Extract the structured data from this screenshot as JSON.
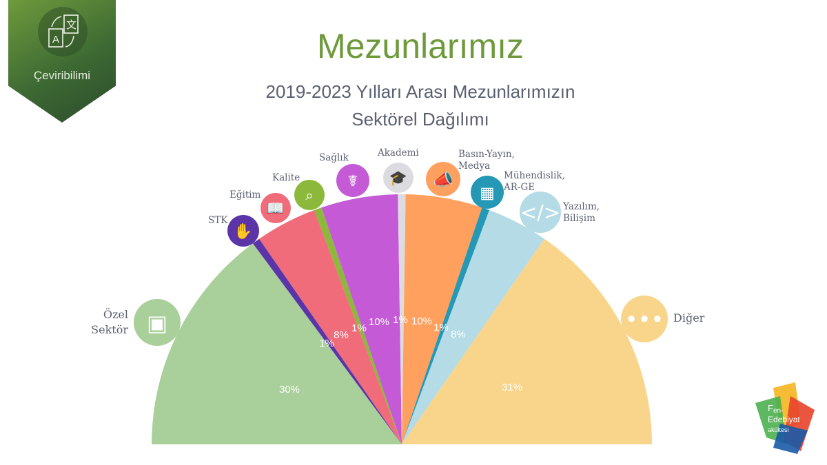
{
  "badge": {
    "label": "Çeviribilimi",
    "icon": "translate-icon"
  },
  "header": {
    "title": "Mezunlarımız",
    "subtitle_lines": [
      "2019-2023 Yılları Arası Mezunlarımızın",
      "Sektörel Dağılımı"
    ]
  },
  "logo": {
    "text": "Fen-Edebiyat Fakültesi",
    "colors": [
      "#f6b82a",
      "#4caf50",
      "#e8432b",
      "#1a5aa6"
    ]
  },
  "chart_data": {
    "type": "pie",
    "variant": "semicircle",
    "categories": [
      {
        "label": "Özel Sektör",
        "value": 30,
        "pct": "30%",
        "color": "#a9d09a",
        "icon": "briefcase-icon"
      },
      {
        "label": "STK",
        "value": 1,
        "pct": "1%",
        "color": "#5b35a8",
        "icon": "hand-globe-icon"
      },
      {
        "label": "Eğitim",
        "value": 8,
        "pct": "8%",
        "color": "#f06c7a",
        "icon": "book-icon"
      },
      {
        "label": "Kalite",
        "value": 1,
        "pct": "1%",
        "color": "#8cb83c",
        "icon": "inspector-icon"
      },
      {
        "label": "Sağlık",
        "value": 10,
        "pct": "10%",
        "color": "#c45ad6",
        "icon": "caduceus-icon"
      },
      {
        "label": "Akademi",
        "value": 1,
        "pct": "1%",
        "color": "#dcdce0",
        "icon": "graduation-cap-icon"
      },
      {
        "label": "Basın-Yayın, Medya",
        "value": 10,
        "pct": "10%",
        "color": "#ffa05e",
        "icon": "megaphone-icon"
      },
      {
        "label": "Mühendislik, AR-GE",
        "value": 1,
        "pct": "1%",
        "color": "#2598b6",
        "icon": "circuit-icon"
      },
      {
        "label": "Yazılım, Bilişim",
        "value": 8,
        "pct": "8%",
        "color": "#b4dbe6",
        "icon": "code-monitor-icon"
      },
      {
        "label": "Diğer",
        "value": 31,
        "pct": "31%",
        "color": "#f9d58b",
        "icon": "ellipsis-icon"
      }
    ]
  }
}
